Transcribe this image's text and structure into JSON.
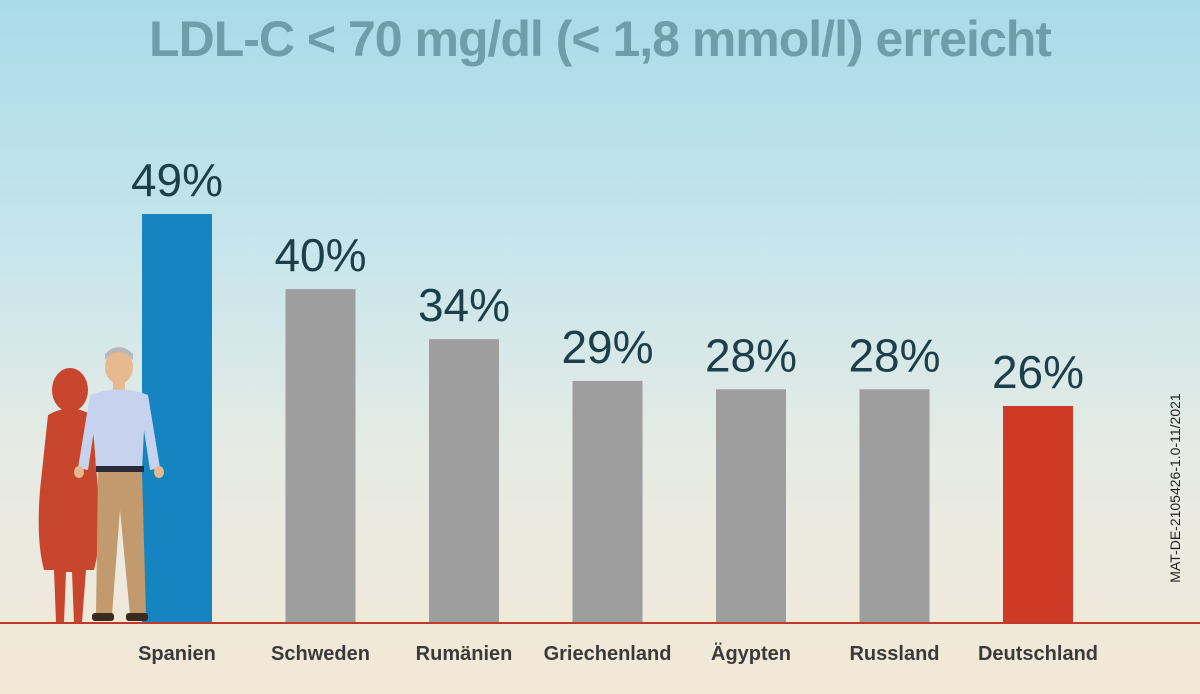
{
  "title": "LDL-C < 70 mg/dl (< 1,8 mmol/l) erreicht",
  "document_code": "MAT-DE-2105426-1.0-11/2021",
  "chart_data": {
    "type": "bar",
    "title": "LDL-C < 70 mg/dl (< 1,8 mmol/l) erreicht",
    "categories": [
      "Spanien",
      "Schweden",
      "Rumänien",
      "Griechenland",
      "Ägypten",
      "Russland",
      "Deutschland"
    ],
    "values": [
      49,
      40,
      34,
      29,
      28,
      28,
      26
    ],
    "value_labels": [
      "49%",
      "40%",
      "34%",
      "29%",
      "28%",
      "28%",
      "26%"
    ],
    "unit": "%",
    "colors": [
      "#1584c0",
      "#9e9e9e",
      "#9e9e9e",
      "#9e9e9e",
      "#9e9e9e",
      "#9e9e9e",
      "#cf3a26"
    ],
    "xlabel": "",
    "ylabel": "",
    "ylim": [
      0,
      49
    ],
    "grid": false,
    "legend": "none",
    "baseline_color": "#c0392b"
  }
}
